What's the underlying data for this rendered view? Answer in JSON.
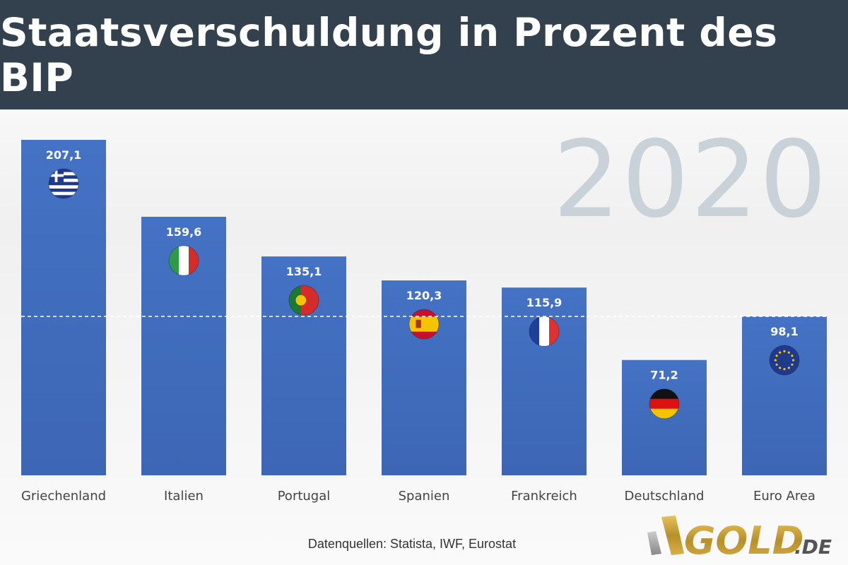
{
  "header": {
    "title": "Staatsverschuldung in Prozent des BIP"
  },
  "year_label": "2020",
  "source": "Datenquellen: Statista, IWF, Eurostat",
  "logo": {
    "text": "GOLD",
    "suffix": ".DE"
  },
  "colors": {
    "bar": "#4472c4",
    "header": "#33414f",
    "year": "#c9d1d9"
  },
  "chart_data": {
    "type": "bar",
    "title": "Staatsverschuldung in Prozent des BIP",
    "categories": [
      "Griechenland",
      "Italien",
      "Portugal",
      "Spanien",
      "Frankreich",
      "Deutschland",
      "Euro Area"
    ],
    "values": [
      207.1,
      159.6,
      135.1,
      120.3,
      115.9,
      71.2,
      98.1
    ],
    "value_labels": [
      "207,1",
      "159,6",
      "135,1",
      "120,3",
      "115,9",
      "71,2",
      "98,1"
    ],
    "flags": [
      "greece-flag-icon",
      "italy-flag-icon",
      "portugal-flag-icon",
      "spain-flag-icon",
      "france-flag-icon",
      "germany-flag-icon",
      "eu-flag-icon"
    ],
    "reference_line": {
      "value": 98.1,
      "style": "dashed",
      "color": "#ffffff"
    },
    "xlabel": "",
    "ylabel": "",
    "ylim": [
      0,
      207.1
    ],
    "grid": false,
    "legend": "none"
  }
}
